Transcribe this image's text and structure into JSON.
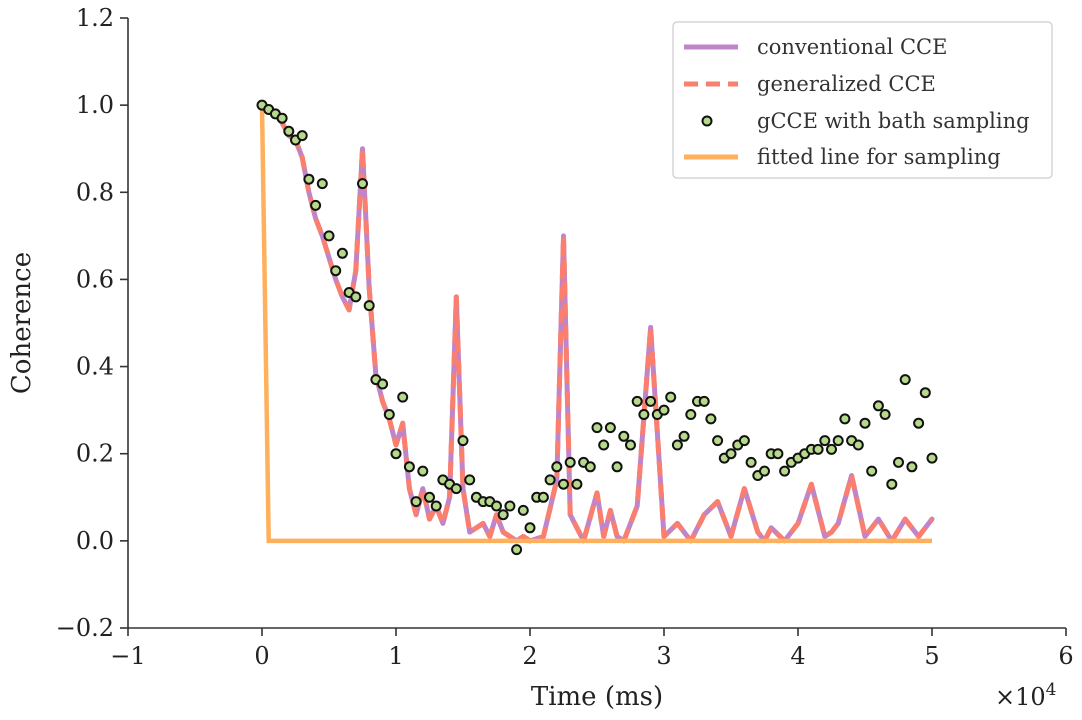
{
  "chart_data": {
    "type": "line",
    "xlabel": "Time (ms)",
    "ylabel": "Coherence",
    "x_offset": {
      "base": "×10",
      "exp": "4"
    },
    "xlim": [
      -1,
      6
    ],
    "ylim": [
      -0.2,
      1.2
    ],
    "xticks": [
      -1,
      0,
      1,
      2,
      3,
      4,
      5,
      6
    ],
    "xtick_labels": [
      "−1",
      "0",
      "1",
      "2",
      "3",
      "4",
      "5",
      "6"
    ],
    "yticks": [
      -0.2,
      0.0,
      0.2,
      0.4,
      0.6,
      0.8,
      1.0,
      1.2
    ],
    "ytick_labels": [
      "−0.2",
      "0.0",
      "0.2",
      "0.4",
      "0.6",
      "0.8",
      "1.0",
      "1.2"
    ],
    "grid": false,
    "legend_position": "top-right",
    "colors": {
      "conventional": "#c084c8",
      "generalized": "#fa7f6f",
      "sampling_fill": "#b7d98c",
      "sampling_edge": "#111111",
      "fitted": "#ffb05c",
      "axis": "#333333"
    },
    "series": [
      {
        "name": "conventional CCE",
        "style": "solid",
        "x": [
          0,
          0.05,
          0.1,
          0.15,
          0.2,
          0.25,
          0.3,
          0.35,
          0.4,
          0.45,
          0.5,
          0.55,
          0.6,
          0.65,
          0.7,
          0.75,
          0.8,
          0.85,
          0.9,
          0.95,
          1.0,
          1.05,
          1.1,
          1.15,
          1.2,
          1.25,
          1.3,
          1.35,
          1.4,
          1.45,
          1.5,
          1.55,
          1.6,
          1.65,
          1.7,
          1.75,
          1.8,
          1.85,
          1.9,
          1.95,
          2.0,
          2.1,
          2.2,
          2.25,
          2.3,
          2.4,
          2.5,
          2.55,
          2.6,
          2.65,
          2.7,
          2.8,
          2.9,
          3.0,
          3.1,
          3.2,
          3.3,
          3.4,
          3.5,
          3.6,
          3.7,
          3.75,
          3.8,
          3.9,
          4.0,
          4.1,
          4.2,
          4.25,
          4.3,
          4.4,
          4.5,
          4.6,
          4.7,
          4.8,
          4.9,
          5.0
        ],
        "y": [
          1.0,
          0.99,
          0.98,
          0.96,
          0.93,
          0.92,
          0.88,
          0.8,
          0.74,
          0.7,
          0.65,
          0.6,
          0.56,
          0.53,
          0.62,
          0.9,
          0.58,
          0.38,
          0.32,
          0.28,
          0.22,
          0.27,
          0.12,
          0.06,
          0.12,
          0.05,
          0.08,
          0.04,
          0.1,
          0.56,
          0.12,
          0.02,
          0.03,
          0.04,
          0.01,
          0.06,
          0.02,
          0.01,
          0.0,
          0.01,
          0.0,
          0.01,
          0.14,
          0.7,
          0.06,
          0.0,
          0.11,
          0.01,
          0.07,
          0.01,
          0.0,
          0.08,
          0.49,
          0.01,
          0.04,
          0.0,
          0.06,
          0.09,
          0.01,
          0.12,
          0.02,
          0.0,
          0.03,
          0.0,
          0.04,
          0.13,
          0.01,
          0.02,
          0.04,
          0.15,
          0.01,
          0.05,
          0.0,
          0.05,
          0.01,
          0.05
        ]
      },
      {
        "name": "generalized CCE",
        "style": "dashed",
        "x": [
          0,
          0.05,
          0.1,
          0.15,
          0.2,
          0.25,
          0.3,
          0.35,
          0.4,
          0.45,
          0.5,
          0.55,
          0.6,
          0.65,
          0.7,
          0.75,
          0.8,
          0.85,
          0.9,
          0.95,
          1.0,
          1.05,
          1.1,
          1.15,
          1.2,
          1.25,
          1.3,
          1.35,
          1.4,
          1.45,
          1.5,
          1.55,
          1.6,
          1.65,
          1.7,
          1.75,
          1.8,
          1.85,
          1.9,
          1.95,
          2.0,
          2.1,
          2.2,
          2.25,
          2.3,
          2.4,
          2.5,
          2.55,
          2.6,
          2.65,
          2.7,
          2.8,
          2.9,
          3.0,
          3.1,
          3.2,
          3.3,
          3.4,
          3.5,
          3.6,
          3.7,
          3.75,
          3.8,
          3.9,
          4.0,
          4.1,
          4.2,
          4.25,
          4.3,
          4.4,
          4.5,
          4.6,
          4.7,
          4.8,
          4.9,
          5.0
        ],
        "y": [
          1.0,
          0.99,
          0.98,
          0.96,
          0.93,
          0.92,
          0.88,
          0.8,
          0.74,
          0.7,
          0.65,
          0.6,
          0.56,
          0.53,
          0.62,
          0.9,
          0.58,
          0.38,
          0.32,
          0.28,
          0.22,
          0.27,
          0.12,
          0.06,
          0.12,
          0.05,
          0.08,
          0.04,
          0.1,
          0.56,
          0.12,
          0.02,
          0.03,
          0.04,
          0.01,
          0.06,
          0.02,
          0.01,
          0.0,
          0.01,
          0.0,
          0.01,
          0.14,
          0.7,
          0.06,
          0.0,
          0.11,
          0.01,
          0.07,
          0.01,
          0.0,
          0.08,
          0.49,
          0.01,
          0.04,
          0.0,
          0.06,
          0.09,
          0.01,
          0.12,
          0.02,
          0.0,
          0.03,
          0.0,
          0.04,
          0.13,
          0.01,
          0.02,
          0.04,
          0.15,
          0.01,
          0.05,
          0.0,
          0.05,
          0.01,
          0.05
        ]
      },
      {
        "name": "gCCE with bath sampling",
        "style": "markers",
        "x": [
          0.0,
          0.05,
          0.1,
          0.15,
          0.2,
          0.25,
          0.3,
          0.35,
          0.4,
          0.45,
          0.5,
          0.55,
          0.6,
          0.65,
          0.7,
          0.75,
          0.8,
          0.85,
          0.9,
          0.95,
          1.0,
          1.05,
          1.1,
          1.15,
          1.2,
          1.25,
          1.3,
          1.35,
          1.4,
          1.45,
          1.5,
          1.55,
          1.6,
          1.65,
          1.7,
          1.75,
          1.8,
          1.85,
          1.9,
          1.95,
          2.0,
          2.05,
          2.1,
          2.15,
          2.2,
          2.25,
          2.3,
          2.35,
          2.4,
          2.45,
          2.5,
          2.55,
          2.6,
          2.65,
          2.7,
          2.75,
          2.8,
          2.85,
          2.9,
          2.95,
          3.0,
          3.05,
          3.1,
          3.15,
          3.2,
          3.25,
          3.3,
          3.35,
          3.4,
          3.45,
          3.5,
          3.55,
          3.6,
          3.65,
          3.7,
          3.75,
          3.8,
          3.85,
          3.9,
          3.95,
          4.0,
          4.05,
          4.1,
          4.15,
          4.2,
          4.25,
          4.3,
          4.35,
          4.4,
          4.45,
          4.5,
          4.55,
          4.6,
          4.65,
          4.7,
          4.75,
          4.8,
          4.85,
          4.9,
          4.95,
          5.0
        ],
        "y": [
          1.0,
          0.99,
          0.98,
          0.97,
          0.94,
          0.92,
          0.93,
          0.83,
          0.77,
          0.82,
          0.7,
          0.62,
          0.66,
          0.57,
          0.56,
          0.82,
          0.54,
          0.37,
          0.36,
          0.29,
          0.2,
          0.33,
          0.17,
          0.09,
          0.16,
          0.1,
          0.08,
          0.14,
          0.13,
          0.12,
          0.23,
          0.14,
          0.1,
          0.09,
          0.09,
          0.08,
          0.06,
          0.08,
          -0.02,
          0.07,
          0.03,
          0.1,
          0.1,
          0.14,
          0.17,
          0.13,
          0.18,
          0.13,
          0.18,
          0.17,
          0.26,
          0.22,
          0.26,
          0.17,
          0.24,
          0.22,
          0.32,
          0.29,
          0.32,
          0.29,
          0.3,
          0.33,
          0.22,
          0.24,
          0.29,
          0.32,
          0.32,
          0.28,
          0.23,
          0.19,
          0.2,
          0.22,
          0.23,
          0.18,
          0.15,
          0.16,
          0.2,
          0.2,
          0.16,
          0.18,
          0.19,
          0.2,
          0.21,
          0.21,
          0.23,
          0.21,
          0.23,
          0.28,
          0.23,
          0.22,
          0.27,
          0.16,
          0.31,
          0.29,
          0.13,
          0.18,
          0.37,
          0.17,
          0.27,
          0.34,
          0.19
        ]
      },
      {
        "name": "fitted line for sampling",
        "style": "solid",
        "x": [
          0,
          0.05,
          5.0
        ],
        "y": [
          1.0,
          0.0,
          0.0
        ]
      }
    ]
  }
}
